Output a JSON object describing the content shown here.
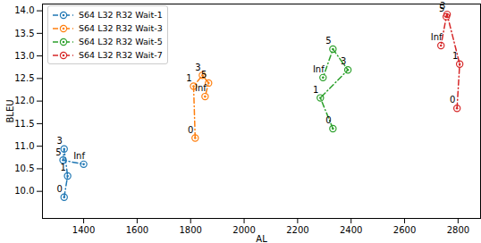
{
  "chart_data": {
    "type": "line",
    "x_label": "AL",
    "y_label": "BLEU",
    "xlim": [
      1246,
      2884
    ],
    "ylim": [
      9.4,
      14.15
    ],
    "xticks": [
      1400,
      1600,
      1800,
      2000,
      2200,
      2400,
      2600,
      2800
    ],
    "yticks": [
      {
        "value": 10,
        "label": "10.0"
      },
      {
        "value": 10.5,
        "label": "10.5"
      },
      {
        "value": 11,
        "label": "11.0"
      },
      {
        "value": 11.5,
        "label": "11.5"
      },
      {
        "value": 12,
        "label": "12.0"
      },
      {
        "value": 12.5,
        "label": "12.5"
      },
      {
        "value": 13,
        "label": "13.0"
      },
      {
        "value": 13.5,
        "label": "13.5"
      },
      {
        "value": 14,
        "label": "14.0"
      }
    ],
    "grid": false,
    "legend": "upper left",
    "marker": "circle",
    "line_style": "dashdot",
    "series": [
      {
        "name": "S64 L32 R32 Wait-1",
        "color": "#1f77b4",
        "labels": [
          "0",
          "1",
          "3",
          "5",
          "Inf"
        ],
        "x": [
          1327,
          1340,
          1327,
          1323,
          1400
        ],
        "values": [
          9.87,
          10.34,
          10.94,
          10.69,
          10.6
        ]
      },
      {
        "name": "S64 L32 R32 Wait-3",
        "color": "#ff7f0e",
        "labels": [
          "0",
          "1",
          "3",
          "5",
          "Inf"
        ],
        "x": [
          1817,
          1811,
          1844,
          1867,
          1854
        ],
        "values": [
          11.18,
          12.33,
          12.57,
          12.4,
          12.1
        ]
      },
      {
        "name": "S64 L32 R32 Wait-5",
        "color": "#2ca02c",
        "labels": [
          "0",
          "1",
          "3",
          "5",
          "Inf"
        ],
        "x": [
          2332,
          2285,
          2388,
          2332,
          2295
        ],
        "values": [
          11.39,
          12.07,
          12.69,
          13.15,
          12.52
        ]
      },
      {
        "name": "S64 L32 R32 Wait-7",
        "color": "#d62728",
        "labels": [
          "0",
          "1",
          "3",
          "5",
          "Inf"
        ],
        "x": [
          2796,
          2806,
          2759,
          2756,
          2736
        ],
        "values": [
          11.84,
          12.82,
          13.92,
          13.87,
          13.23
        ]
      }
    ]
  }
}
